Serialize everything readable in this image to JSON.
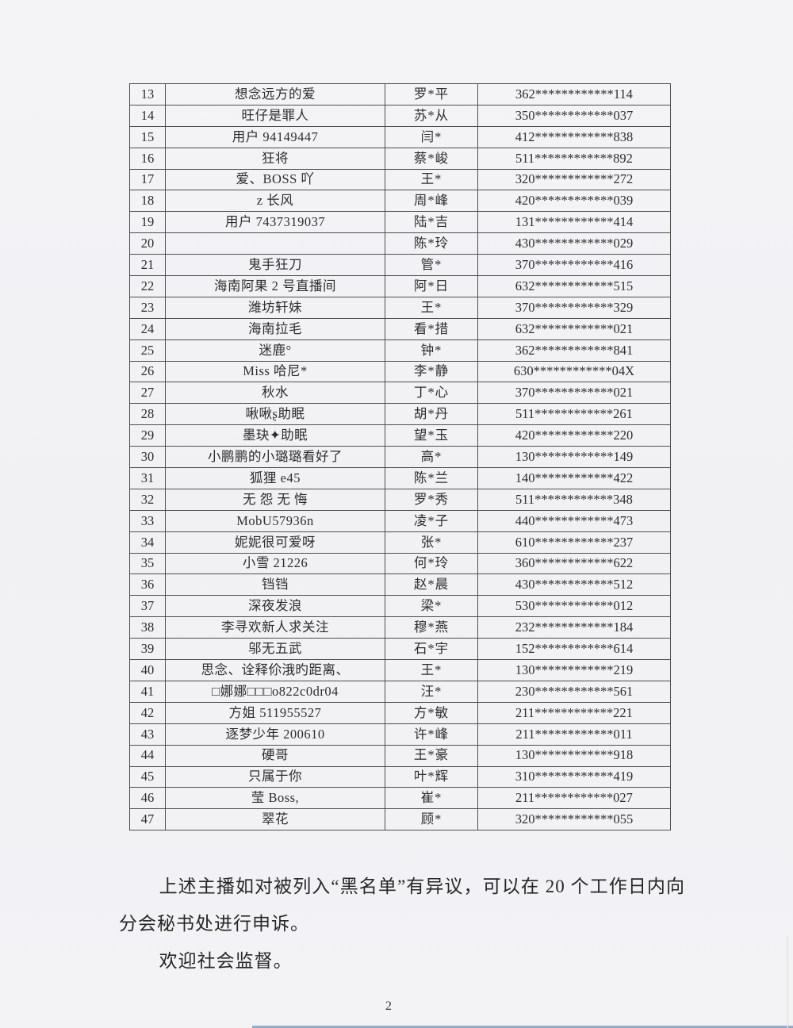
{
  "page": {
    "number": "2",
    "background_color": "#f2f2f5",
    "table_border_color": "#4e4e4e",
    "bottom_line_color": "#7da8da"
  },
  "table": {
    "rows": [
      {
        "num": "13",
        "nickname": "想念远方的爱",
        "name": "罗*平",
        "id": "362************114"
      },
      {
        "num": "14",
        "nickname": "旺仔是罪人",
        "name": "苏*从",
        "id": "350************037"
      },
      {
        "num": "15",
        "nickname": "用户 94149447",
        "name": "闫*",
        "id": "412************838"
      },
      {
        "num": "16",
        "nickname": "狂将",
        "name": "蔡*峻",
        "id": "511************892"
      },
      {
        "num": "17",
        "nickname": "爱、BOSS 吖",
        "name": "王*",
        "id": "320************272"
      },
      {
        "num": "18",
        "nickname": "z 长风",
        "name": "周*峰",
        "id": "420************039"
      },
      {
        "num": "19",
        "nickname": "用户 7437319037",
        "name": "陆*吉",
        "id": "131************414"
      },
      {
        "num": "20",
        "nickname": "",
        "name": "陈*玲",
        "id": "430************029"
      },
      {
        "num": "21",
        "nickname": "鬼手狂刀",
        "name": "管*",
        "id": "370************416"
      },
      {
        "num": "22",
        "nickname": "海南阿果 2 号直播间",
        "name": "阿*日",
        "id": "632************515"
      },
      {
        "num": "23",
        "nickname": "潍坊轩妹",
        "name": "王*",
        "id": "370************329"
      },
      {
        "num": "24",
        "nickname": "海南拉毛",
        "name": "看*措",
        "id": "632************021"
      },
      {
        "num": "25",
        "nickname": "迷鹿°",
        "name": "钟*",
        "id": "362************841"
      },
      {
        "num": "26",
        "nickname": "Miss 哈尼*",
        "name": "李*静",
        "id": "630************04X"
      },
      {
        "num": "27",
        "nickname": "秋水",
        "name": "丁*心",
        "id": "370************021"
      },
      {
        "num": "28",
        "nickname": "啾啾ʂ助眠",
        "name": "胡*丹",
        "id": "511************261"
      },
      {
        "num": "29",
        "nickname": "墨玦✦助眠",
        "name": "望*玉",
        "id": "420************220"
      },
      {
        "num": "30",
        "nickname": "小鹏鹏的小璐璐看好了",
        "name": "高*",
        "id": "130************149"
      },
      {
        "num": "31",
        "nickname": "狐狸 e45",
        "name": "陈*兰",
        "id": "140************422"
      },
      {
        "num": "32",
        "nickname": "无 怨 无 悔",
        "name": "罗*秀",
        "id": "511************348"
      },
      {
        "num": "33",
        "nickname": "MobU57936n",
        "name": "凌*子",
        "id": "440************473"
      },
      {
        "num": "34",
        "nickname": "妮妮很可爱呀",
        "name": "张*",
        "id": "610************237"
      },
      {
        "num": "35",
        "nickname": "小雪 21226",
        "name": "何*玲",
        "id": "360************622"
      },
      {
        "num": "36",
        "nickname": "铛铛",
        "name": "赵*晨",
        "id": "430************512"
      },
      {
        "num": "37",
        "nickname": "深夜发浪",
        "name": "梁*",
        "id": "530************012"
      },
      {
        "num": "38",
        "nickname": "李寻欢新人求关注",
        "name": "穆*燕",
        "id": "232************184"
      },
      {
        "num": "39",
        "nickname": "邬无五武",
        "name": "石*宇",
        "id": "152************614"
      },
      {
        "num": "40",
        "nickname": "思念、诠释伱涐旳距离、",
        "name": "王*",
        "id": "130************219"
      },
      {
        "num": "41",
        "nickname": "□娜娜□□□o822c0dr04",
        "name": "汪*",
        "id": "230************561"
      },
      {
        "num": "42",
        "nickname": "方姐 511955527",
        "name": "方*敏",
        "id": "211************221"
      },
      {
        "num": "43",
        "nickname": "逐梦少年 200610",
        "name": "许*峰",
        "id": "211************011"
      },
      {
        "num": "44",
        "nickname": "硬哥",
        "name": "王*豪",
        "id": "130************918"
      },
      {
        "num": "45",
        "nickname": "只属于你",
        "name": "叶*辉",
        "id": "310************419"
      },
      {
        "num": "46",
        "nickname": "莹 Boss,",
        "name": "崔*",
        "id": "211************027"
      },
      {
        "num": "47",
        "nickname": "翠花",
        "name": "顾*",
        "id": "320************055"
      }
    ]
  },
  "footer": {
    "paragraph1": "上述主播如对被列入“黑名单”有异议，可以在 20 个工作日内向分会秘书处进行申诉。",
    "paragraph2": "欢迎社会监督。",
    "page_number": "2"
  }
}
